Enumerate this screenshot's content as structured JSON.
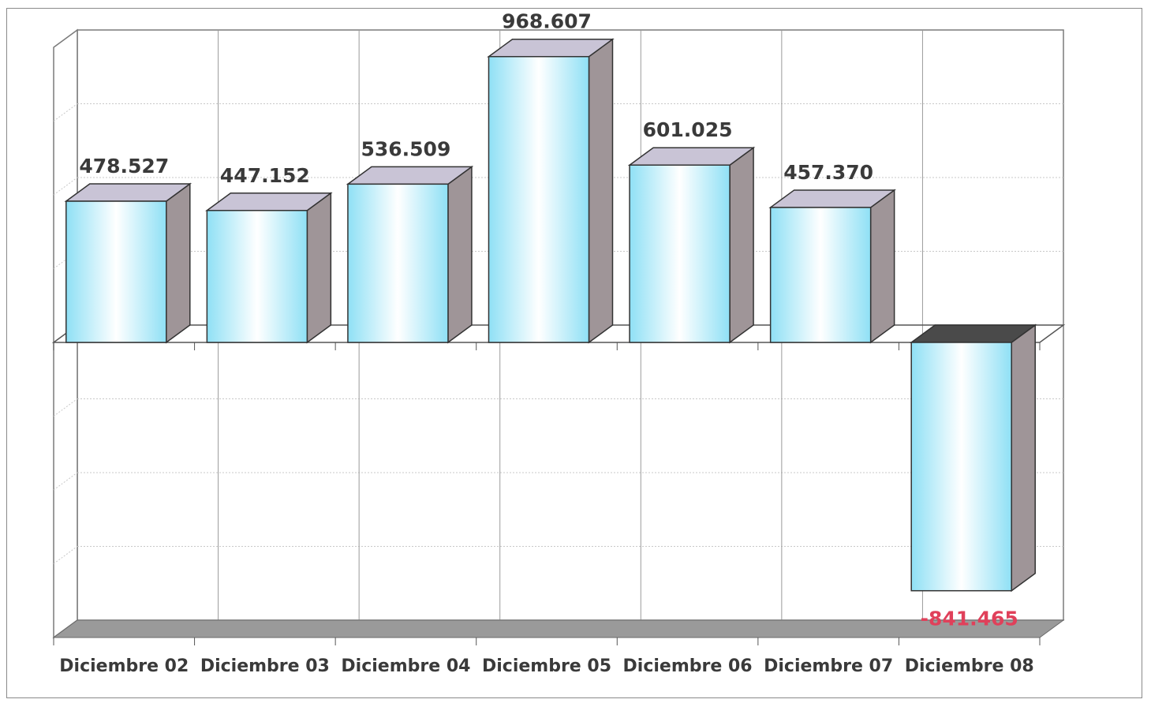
{
  "chart_data": {
    "type": "bar",
    "categories": [
      "Diciembre 02",
      "Diciembre 03",
      "Diciembre 04",
      "Diciembre 05",
      "Diciembre 06",
      "Diciembre 07",
      "Diciembre 08"
    ],
    "values": [
      478527,
      447152,
      536509,
      968607,
      601025,
      457370,
      -841465
    ],
    "value_labels": [
      "478.527",
      "447.152",
      "536.509",
      "968.607",
      "601.025",
      "457.370",
      "-841.465"
    ],
    "ylim": [
      -1000000,
      1000000
    ],
    "grid": true,
    "three_d": true,
    "title": "",
    "xlabel": "",
    "ylabel": "",
    "colors": {
      "bar_front_edge": "#8fe0f5",
      "bar_front_center": "#ffffff",
      "bar_top": "#c9c4d6",
      "bar_side": "#9f9598",
      "negative_top": "#4a4a4a",
      "positive_label": "#3a3a3a",
      "negative_label": "#e0405a",
      "floor": "#9a9a9a"
    }
  }
}
